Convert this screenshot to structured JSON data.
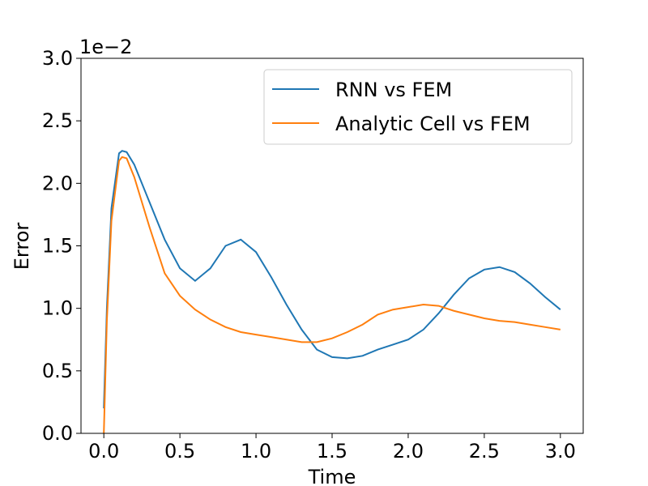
{
  "chart_data": {
    "type": "line",
    "x_label": "Time",
    "y_label": "Error",
    "y_offset_label": "1e−2",
    "x": [
      0,
      0.02,
      0.05,
      0.1,
      0.12,
      0.15,
      0.2,
      0.3,
      0.4,
      0.5,
      0.6,
      0.7,
      0.8,
      0.9,
      1.0,
      1.1,
      1.2,
      1.3,
      1.4,
      1.5,
      1.6,
      1.7,
      1.8,
      1.9,
      2.0,
      2.1,
      2.2,
      2.3,
      2.4,
      2.5,
      2.6,
      2.7,
      2.8,
      2.9,
      3.0
    ],
    "series": [
      {
        "name": "RNN vs FEM",
        "color": "#1f77b4",
        "values": [
          0.2,
          1.0,
          1.8,
          2.24,
          2.26,
          2.25,
          2.15,
          1.85,
          1.55,
          1.32,
          1.22,
          1.32,
          1.5,
          1.55,
          1.45,
          1.25,
          1.03,
          0.83,
          0.67,
          0.61,
          0.6,
          0.62,
          0.67,
          0.71,
          0.75,
          0.83,
          0.96,
          1.11,
          1.24,
          1.31,
          1.33,
          1.29,
          1.2,
          1.09,
          0.99
        ]
      },
      {
        "name": "Analytic Cell vs FEM",
        "color": "#ff7f0e",
        "values": [
          0.0,
          0.9,
          1.7,
          2.18,
          2.21,
          2.2,
          2.05,
          1.65,
          1.28,
          1.1,
          0.99,
          0.91,
          0.85,
          0.81,
          0.79,
          0.77,
          0.75,
          0.73,
          0.73,
          0.76,
          0.81,
          0.87,
          0.95,
          0.99,
          1.01,
          1.03,
          1.02,
          0.98,
          0.95,
          0.92,
          0.9,
          0.89,
          0.87,
          0.85,
          0.83
        ]
      }
    ],
    "xlim": [
      -0.15,
      3.15
    ],
    "xticks": [
      {
        "value": 0,
        "label": "0.0"
      },
      0.5,
      {
        "value": 1,
        "label": "1.0"
      },
      1.5,
      {
        "value": 2,
        "label": "2.0"
      },
      2.5,
      {
        "value": 3,
        "label": "3.0"
      }
    ],
    "ylim": [
      0,
      3
    ],
    "yticks": [
      {
        "value": 0,
        "label": "0.0"
      },
      0.5,
      {
        "value": 1,
        "label": "1.0"
      },
      1.5,
      {
        "value": 2,
        "label": "2.0"
      },
      2.5,
      {
        "value": 3,
        "label": "3.0"
      }
    ],
    "legend": "upper right",
    "grid": false
  }
}
